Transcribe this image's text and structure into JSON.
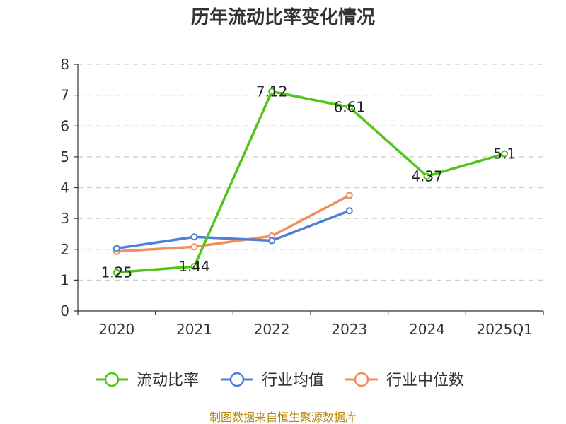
{
  "chart_data": {
    "type": "line",
    "title": "历年流动比率变化情况",
    "categories": [
      "2020",
      "2021",
      "2022",
      "2023",
      "2024",
      "2025Q1"
    ],
    "ylim": [
      0,
      8
    ],
    "yticks": [
      0,
      1,
      2,
      3,
      4,
      5,
      6,
      7,
      8
    ],
    "grid": true,
    "legend_position": "bottom",
    "series": [
      {
        "name": "流动比率",
        "color": "#52c41a",
        "values": [
          1.25,
          1.44,
          7.12,
          6.61,
          4.37,
          5.1
        ],
        "labels": [
          "1.25",
          "1.44",
          "7.12",
          "6.61",
          "4.37",
          "5.1"
        ]
      },
      {
        "name": "行业均值",
        "color": "#4f7fd9",
        "values": [
          2.03,
          2.4,
          2.28,
          3.25,
          null,
          null
        ]
      },
      {
        "name": "行业中位数",
        "color": "#f28e5b",
        "values": [
          1.93,
          2.08,
          2.43,
          3.75,
          null,
          null
        ]
      }
    ]
  },
  "source": "制图数据来自恒生聚源数据库"
}
